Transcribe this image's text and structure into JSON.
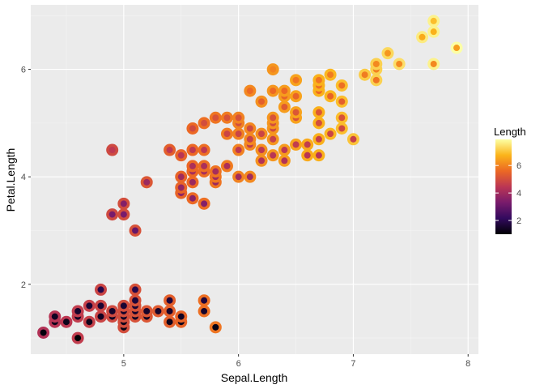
{
  "chart_data": {
    "type": "scatter",
    "title": "",
    "xlabel": "Sepal.Length",
    "ylabel": "Petal.Length",
    "xlim": [
      4.19,
      8.09
    ],
    "ylim": [
      0.7,
      7.2
    ],
    "x_ticks": [
      5,
      6,
      7,
      8
    ],
    "y_ticks": [
      2,
      4,
      6
    ],
    "grid": true,
    "legend": {
      "title": "Length",
      "placement": "right",
      "ticks": [
        2,
        4,
        6
      ],
      "range": [
        1,
        7.9
      ],
      "colors": [
        "#000004",
        "#320A5E",
        "#781B6C",
        "#BB3654",
        "#EC6824",
        "#FBB41A",
        "#FCFFA4"
      ]
    },
    "outer_color_variable": "Sepal.Length",
    "inner_color_variable": "Petal.Length",
    "points": [
      [
        4.3,
        1.1
      ],
      [
        4.4,
        1.3
      ],
      [
        4.4,
        1.4
      ],
      [
        4.5,
        1.3
      ],
      [
        4.6,
        1.0
      ],
      [
        4.6,
        1.4
      ],
      [
        4.6,
        1.5
      ],
      [
        4.7,
        1.3
      ],
      [
        4.7,
        1.6
      ],
      [
        4.8,
        1.4
      ],
      [
        4.8,
        1.6
      ],
      [
        4.8,
        1.9
      ],
      [
        4.9,
        1.4
      ],
      [
        4.9,
        1.5
      ],
      [
        4.9,
        3.3
      ],
      [
        4.9,
        4.5
      ],
      [
        5.0,
        1.2
      ],
      [
        5.0,
        1.3
      ],
      [
        5.0,
        1.4
      ],
      [
        5.0,
        1.5
      ],
      [
        5.0,
        1.6
      ],
      [
        5.0,
        3.3
      ],
      [
        5.0,
        3.5
      ],
      [
        5.1,
        1.4
      ],
      [
        5.1,
        1.5
      ],
      [
        5.1,
        1.6
      ],
      [
        5.1,
        1.7
      ],
      [
        5.1,
        1.9
      ],
      [
        5.1,
        3.0
      ],
      [
        5.2,
        1.4
      ],
      [
        5.2,
        1.5
      ],
      [
        5.2,
        3.9
      ],
      [
        5.3,
        1.5
      ],
      [
        5.4,
        1.3
      ],
      [
        5.4,
        1.5
      ],
      [
        5.4,
        1.7
      ],
      [
        5.4,
        4.5
      ],
      [
        5.5,
        1.3
      ],
      [
        5.5,
        1.4
      ],
      [
        5.5,
        3.7
      ],
      [
        5.5,
        3.8
      ],
      [
        5.5,
        4.0
      ],
      [
        5.5,
        4.4
      ],
      [
        5.6,
        3.6
      ],
      [
        5.6,
        3.9
      ],
      [
        5.6,
        4.1
      ],
      [
        5.6,
        4.2
      ],
      [
        5.6,
        4.5
      ],
      [
        5.6,
        4.9
      ],
      [
        5.7,
        1.5
      ],
      [
        5.7,
        1.7
      ],
      [
        5.7,
        3.5
      ],
      [
        5.7,
        4.1
      ],
      [
        5.7,
        4.2
      ],
      [
        5.7,
        4.5
      ],
      [
        5.7,
        5.0
      ],
      [
        5.8,
        1.2
      ],
      [
        5.8,
        3.9
      ],
      [
        5.8,
        4.0
      ],
      [
        5.8,
        4.1
      ],
      [
        5.8,
        5.1
      ],
      [
        5.9,
        4.2
      ],
      [
        5.9,
        4.8
      ],
      [
        5.9,
        5.1
      ],
      [
        6.0,
        4.0
      ],
      [
        6.0,
        4.5
      ],
      [
        6.0,
        4.8
      ],
      [
        6.0,
        5.0
      ],
      [
        6.0,
        5.1
      ],
      [
        6.1,
        4.0
      ],
      [
        6.1,
        4.6
      ],
      [
        6.1,
        4.7
      ],
      [
        6.1,
        4.9
      ],
      [
        6.1,
        5.6
      ],
      [
        6.2,
        4.3
      ],
      [
        6.2,
        4.5
      ],
      [
        6.2,
        4.8
      ],
      [
        6.2,
        5.4
      ],
      [
        6.3,
        4.4
      ],
      [
        6.3,
        4.7
      ],
      [
        6.3,
        4.9
      ],
      [
        6.3,
        5.0
      ],
      [
        6.3,
        5.1
      ],
      [
        6.3,
        5.6
      ],
      [
        6.3,
        6.0
      ],
      [
        6.4,
        4.3
      ],
      [
        6.4,
        4.5
      ],
      [
        6.4,
        5.3
      ],
      [
        6.4,
        5.5
      ],
      [
        6.4,
        5.6
      ],
      [
        6.5,
        4.6
      ],
      [
        6.5,
        5.1
      ],
      [
        6.5,
        5.2
      ],
      [
        6.5,
        5.5
      ],
      [
        6.5,
        5.8
      ],
      [
        6.6,
        4.4
      ],
      [
        6.6,
        4.6
      ],
      [
        6.7,
        4.4
      ],
      [
        6.7,
        4.7
      ],
      [
        6.7,
        5.0
      ],
      [
        6.7,
        5.2
      ],
      [
        6.7,
        5.6
      ],
      [
        6.7,
        5.7
      ],
      [
        6.7,
        5.8
      ],
      [
        6.8,
        4.8
      ],
      [
        6.8,
        5.5
      ],
      [
        6.8,
        5.9
      ],
      [
        6.9,
        4.9
      ],
      [
        6.9,
        5.1
      ],
      [
        6.9,
        5.4
      ],
      [
        6.9,
        5.7
      ],
      [
        7.0,
        4.7
      ],
      [
        7.1,
        5.9
      ],
      [
        7.2,
        5.8
      ],
      [
        7.2,
        6.0
      ],
      [
        7.2,
        6.1
      ],
      [
        7.3,
        6.3
      ],
      [
        7.4,
        6.1
      ],
      [
        7.6,
        6.6
      ],
      [
        7.7,
        6.1
      ],
      [
        7.7,
        6.7
      ],
      [
        7.7,
        6.9
      ],
      [
        7.9,
        6.4
      ]
    ]
  }
}
